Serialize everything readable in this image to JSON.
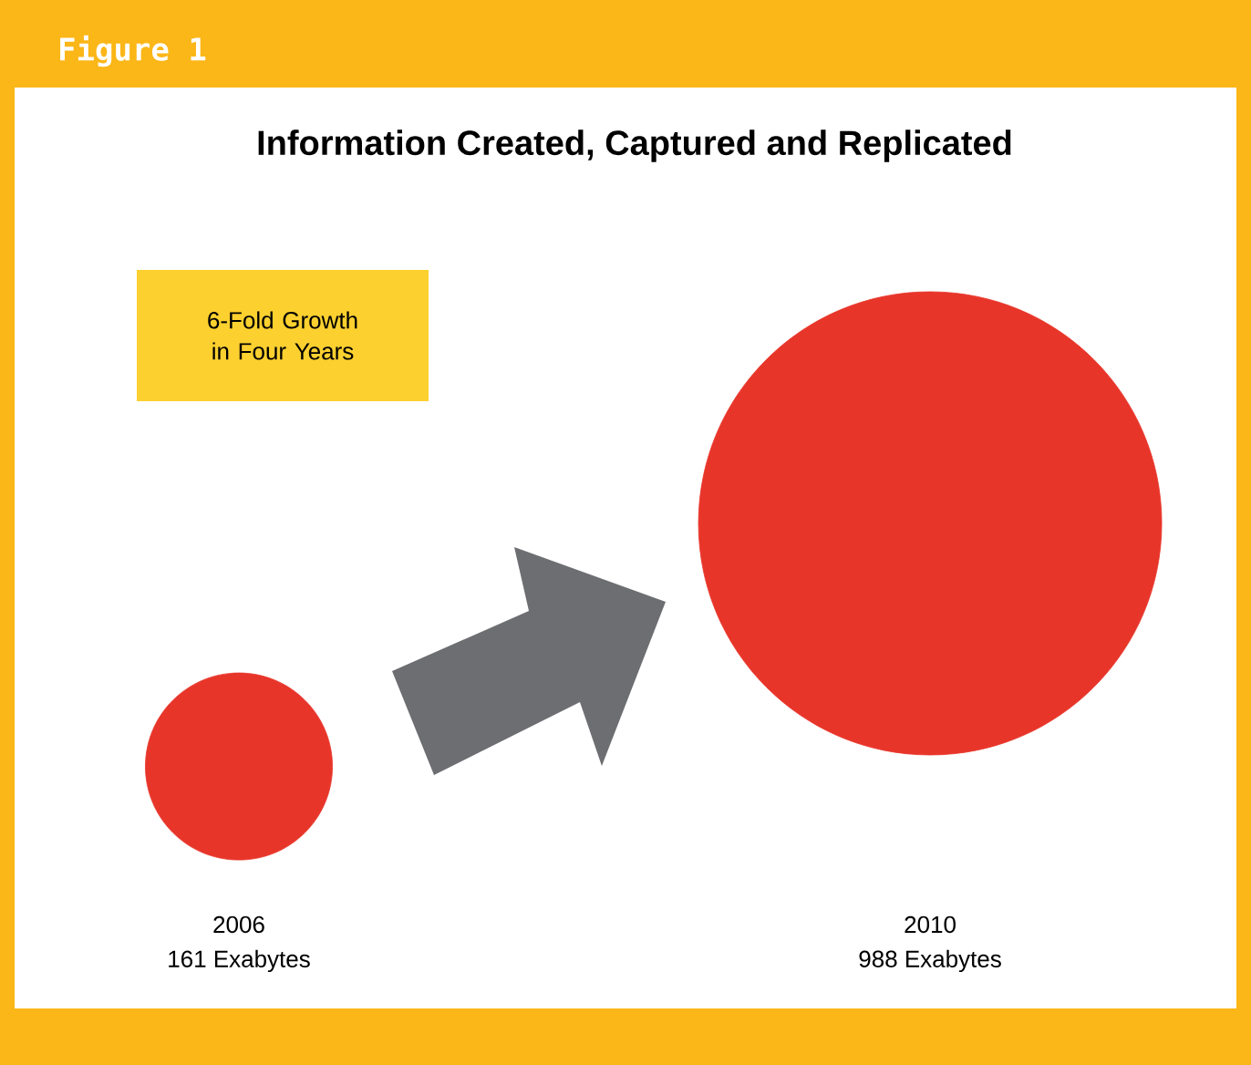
{
  "chart_data": {
    "type": "other",
    "title": "Information Created, Captured and Replicated",
    "annotations": [
      "Figure 1",
      "6-Fold Growth in Four Years"
    ],
    "categories": [
      "2006",
      "2010"
    ],
    "values": [
      161,
      988
    ],
    "value_labels": [
      "161 Exabytes",
      "988 Exabytes"
    ],
    "color": "#e8352a"
  }
}
